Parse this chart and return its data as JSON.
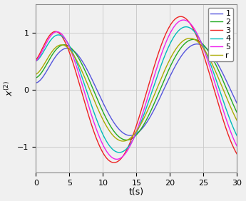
{
  "title": "",
  "xlabel": "t(s)",
  "ylabel": "x^{(2)}",
  "xlim": [
    0,
    30
  ],
  "ylim": [
    -1.45,
    1.5
  ],
  "xticks": [
    0,
    5,
    10,
    15,
    20,
    25,
    30
  ],
  "yticks": [
    -1,
    0,
    1
  ],
  "colors": {
    "1": "#5555dd",
    "2": "#22aa22",
    "3": "#ee2222",
    "4": "#00bbbb",
    "5": "#ee22ee",
    "r": "#aaaa00"
  },
  "legend_labels": [
    "1",
    "2",
    "3",
    "4",
    "5",
    "r"
  ],
  "grid_color": "#cccccc",
  "figsize": [
    3.45,
    2.82
  ],
  "dpi": 100,
  "background": "#f0f0f0",
  "signals": {
    "1": {
      "A": 0.8,
      "phi": 0.0,
      "start": 0.12
    },
    "2": {
      "A": 0.88,
      "phi": 0.18,
      "start": 0.22
    },
    "3": {
      "A": 1.28,
      "phi": 0.55,
      "start": 0.55
    },
    "4": {
      "A": 1.1,
      "phi": 0.38,
      "start": 0.52
    },
    "5": {
      "A": 1.22,
      "phi": 0.48,
      "start": 0.52
    },
    "r": {
      "A": 0.9,
      "phi": 0.25,
      "start": 0.28
    }
  },
  "freq": 0.315,
  "tau": 3.5,
  "linewidth": 1.0
}
